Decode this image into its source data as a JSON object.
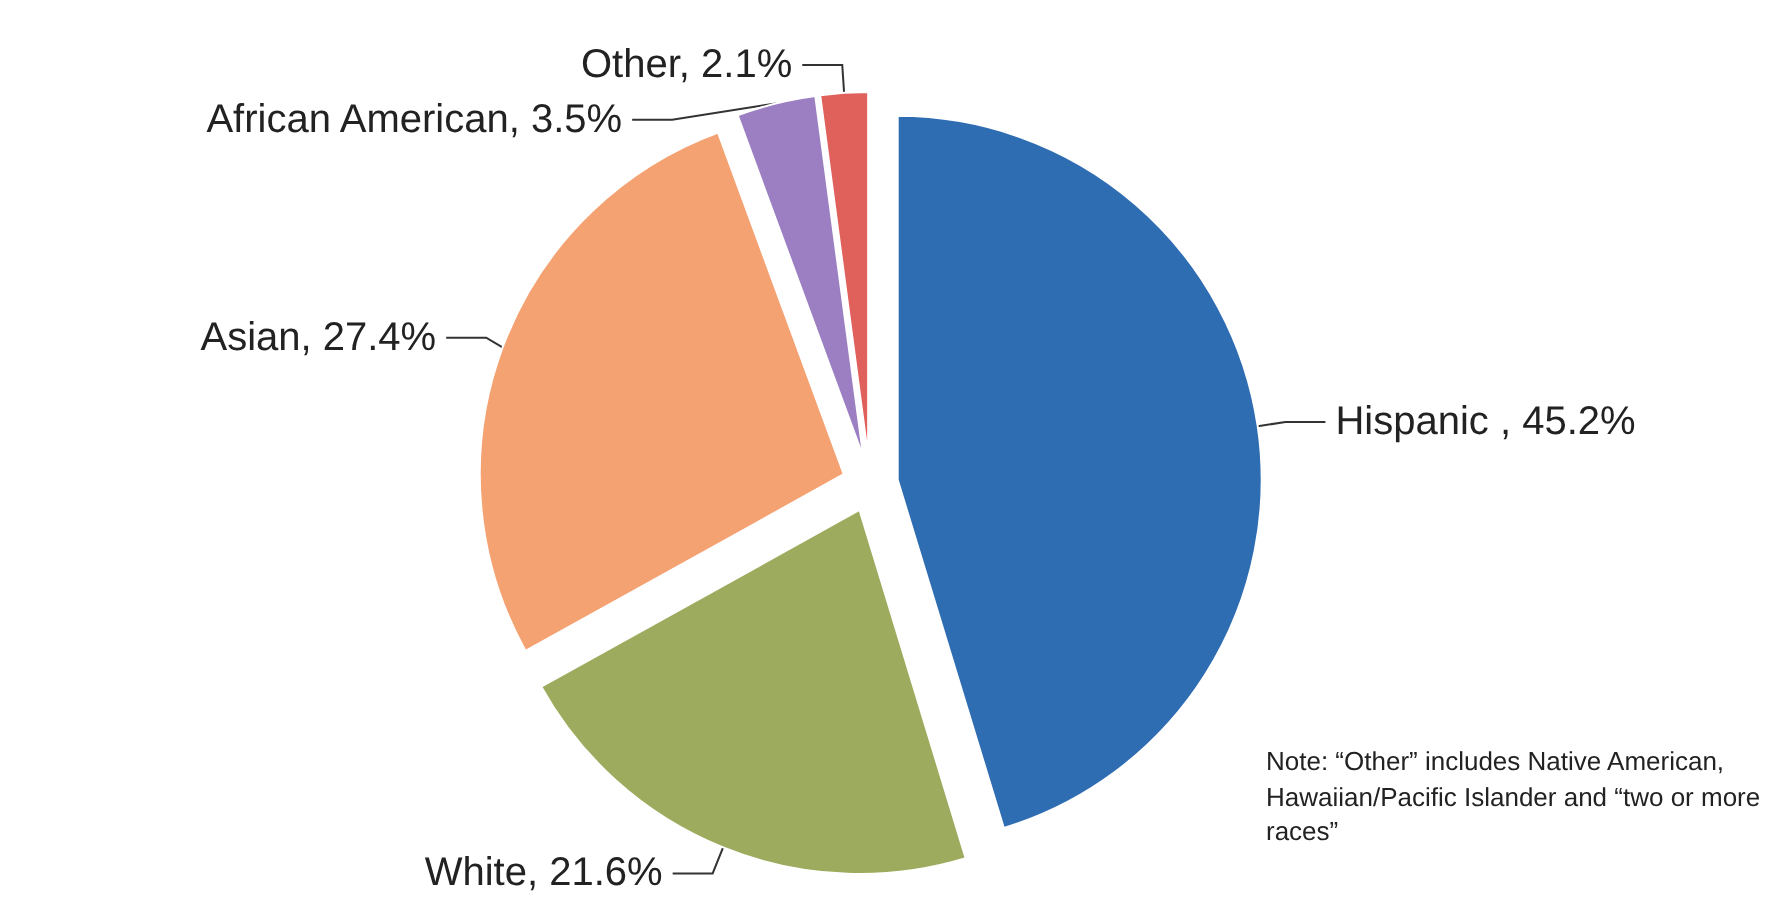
{
  "chart_data": {
    "type": "pie",
    "categories": [
      "Hispanic ",
      "White",
      "Asian",
      "African American",
      "Other"
    ],
    "values": [
      45.2,
      21.6,
      27.4,
      3.5,
      2.1
    ],
    "colors": [
      "#2f6db3",
      "#9dab5e",
      "#f5a273",
      "#9b7fc2",
      "#e0605c"
    ],
    "value_labels": [
      "45.2%",
      "21.6%",
      "27.4%",
      "3.5%",
      "2.1%"
    ],
    "annotations": [
      "Note:  “Other” includes Native American, Hawaiian/Pacific Islander and “two or more races”"
    ]
  }
}
